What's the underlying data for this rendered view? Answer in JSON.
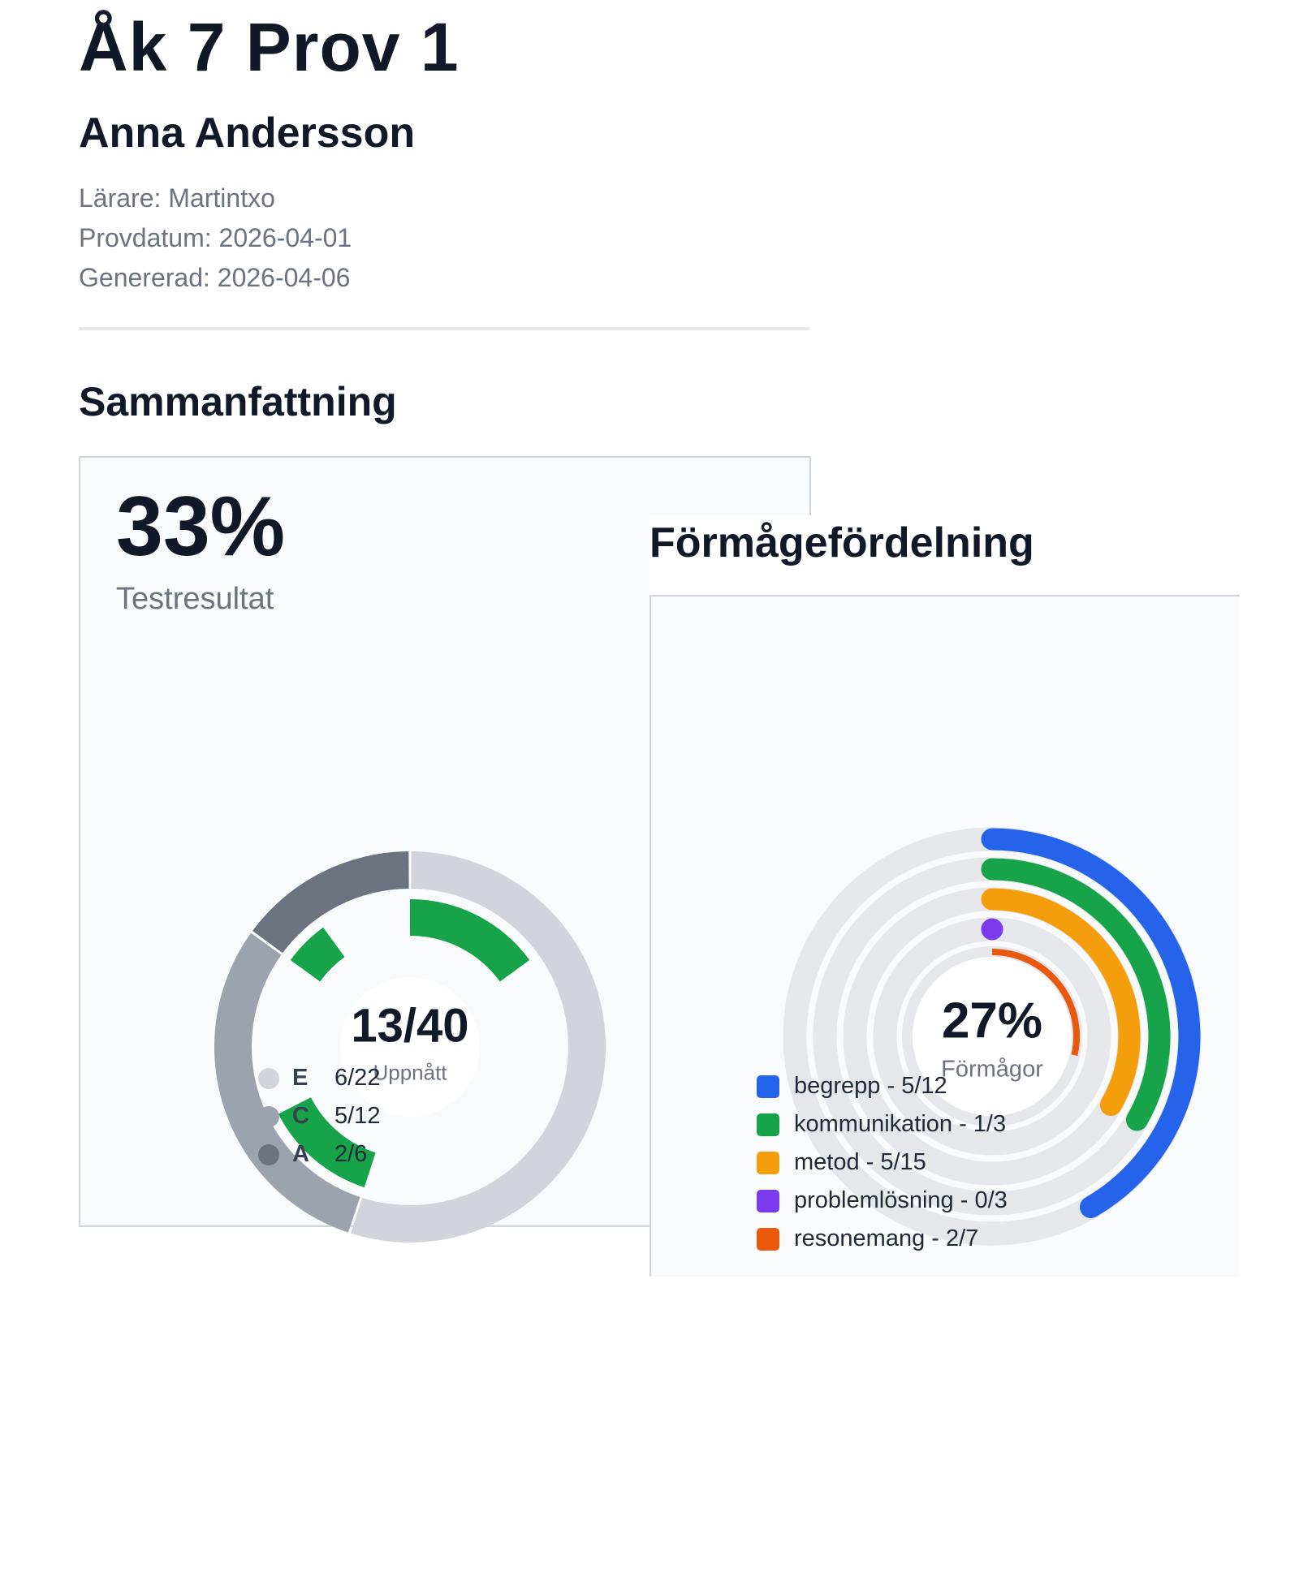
{
  "header": {
    "title": "Åk 7 Prov 1",
    "student": "Anna Andersson",
    "teacher": "Lärare: Martintxo",
    "test_date": "Provdatum: 2026-04-01",
    "generated": "Genererad: 2026-04-06"
  },
  "summary": {
    "heading": "Sammanfattning",
    "percent": "33%",
    "percent_label": "Testresultat"
  },
  "formage": {
    "heading": "Förmågefördelning"
  },
  "chart_data": [
    {
      "type": "pie",
      "variant": "nested-donut",
      "center_value": "13/40",
      "center_label": "Uppnått",
      "total": 40,
      "categories": [
        "E",
        "C",
        "A"
      ],
      "max_values": [
        22,
        12,
        6
      ],
      "achieved_values": [
        6,
        5,
        2
      ],
      "legend": [
        "6/22",
        "5/12",
        "2/6"
      ],
      "colors": [
        "#d1d5db",
        "#9ca3af",
        "#6b7280"
      ],
      "achieved_color": "#16a34a",
      "legend_placement": "bottom"
    },
    {
      "type": "radial-bar",
      "center_value": "27%",
      "center_label": "Förmågor",
      "series": [
        {
          "name": "begrepp",
          "achieved": 5,
          "max": 12,
          "label": "begrepp - 5/12",
          "color": "#2563eb"
        },
        {
          "name": "kommunikation",
          "achieved": 1,
          "max": 3,
          "label": "kommunikation - 1/3",
          "color": "#16a34a"
        },
        {
          "name": "metod",
          "achieved": 5,
          "max": 15,
          "label": "metod - 5/15",
          "color": "#f59e0b"
        },
        {
          "name": "problemlösning",
          "achieved": 0,
          "max": 3,
          "label": "problemlösning - 0/3",
          "color": "#7c3aed"
        },
        {
          "name": "resonemang",
          "achieved": 2,
          "max": 7,
          "label": "resonemang - 2/7",
          "color": "#ea580c"
        }
      ],
      "track_color": "#e5e7eb",
      "legend_placement": "bottom"
    }
  ]
}
